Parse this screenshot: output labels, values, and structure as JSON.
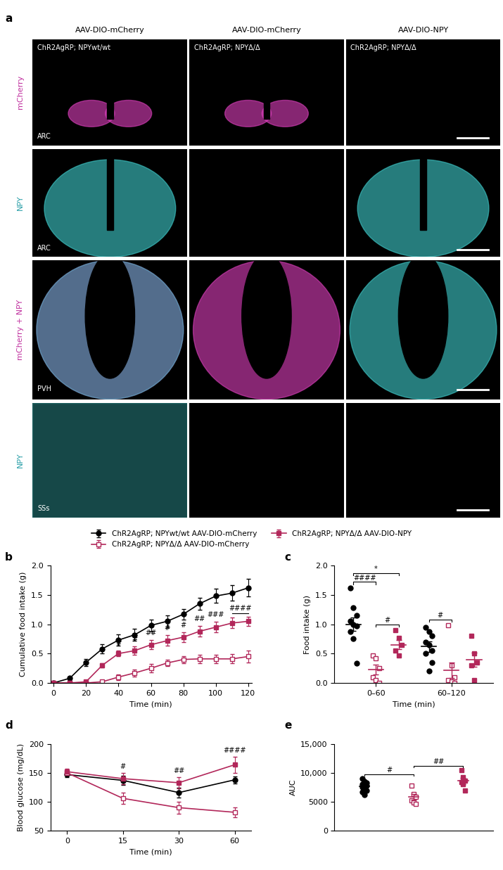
{
  "panel_a": {
    "letter": "a",
    "columns": [
      {
        "header": "AAV-DIO-mCherry",
        "genotype": "ChR2AgRP; NPYwt/wt"
      },
      {
        "header": "AAV-DIO-mCherry",
        "genotype": "ChR2AgRP; NPYΔ/Δ"
      },
      {
        "header": "AAV-DIO-NPY",
        "genotype": "ChR2AgRP; NPYΔ/Δ"
      }
    ],
    "rows": [
      {
        "label": "mCherry",
        "region": "ARC"
      },
      {
        "label": "NPY",
        "region": "ARC"
      },
      {
        "label": "mCherry + NPY",
        "region": "PVH"
      },
      {
        "label": "NPY",
        "region": "SSs"
      }
    ]
  },
  "chart_data": [
    {
      "panel": "b",
      "type": "line",
      "x": [
        0,
        10,
        20,
        30,
        40,
        50,
        60,
        70,
        80,
        90,
        100,
        110,
        120
      ],
      "xlim": [
        -2,
        122
      ],
      "xticks": [
        0,
        20,
        40,
        60,
        80,
        100,
        120
      ],
      "ylim": [
        0,
        2
      ],
      "yticks": [
        {
          "value": 0,
          "label": "0.0"
        },
        {
          "value": 0.5,
          "label": "0.5"
        },
        {
          "value": 1,
          "label": "1.0"
        },
        {
          "value": 1.5,
          "label": "1.5"
        },
        {
          "value": 2,
          "label": "2.0"
        }
      ],
      "x_label": "Time (min)",
      "y_label": "Cumulative food intake (g)",
      "legend": "upper center",
      "series": [
        {
          "name": "ChR2AgRP; NPYwt/wt AAV-DIO-mCherry",
          "color": "#000000",
          "marker": "circle",
          "values": [
            0,
            0.08,
            0.35,
            0.58,
            0.73,
            0.82,
            0.98,
            1.05,
            1.17,
            1.35,
            1.48,
            1.53,
            1.62
          ],
          "errors": [
            0.01,
            0.03,
            0.06,
            0.08,
            0.1,
            0.1,
            0.1,
            0.1,
            0.09,
            0.1,
            0.12,
            0.13,
            0.15
          ]
        },
        {
          "name": "ChR2AgRP; NPYΔ/Δ AAV-DIO-mCherry",
          "color": "#b2275a",
          "marker": "open_square",
          "values": [
            0,
            0,
            0,
            0.02,
            0.1,
            0.17,
            0.25,
            0.34,
            0.4,
            0.41,
            0.41,
            0.41,
            0.45
          ],
          "errors": [
            0,
            0,
            0.01,
            0.03,
            0.05,
            0.06,
            0.07,
            0.05,
            0.06,
            0.07,
            0.07,
            0.08,
            0.1
          ]
        },
        {
          "name": "ChR2AgRP; NPYΔ/Δ AAV-DIO-NPY",
          "color": "#b2275a",
          "marker": "square",
          "values": [
            0,
            0,
            0.02,
            0.3,
            0.5,
            0.55,
            0.65,
            0.72,
            0.78,
            0.88,
            0.95,
            1.02,
            1.05
          ],
          "errors": [
            0,
            0,
            0.02,
            0.04,
            0.05,
            0.07,
            0.08,
            0.09,
            0.08,
            0.09,
            0.09,
            0.09,
            0.08
          ]
        }
      ],
      "annotations": [
        {
          "text": "#",
          "x": 40,
          "between": [
            "ChR2AgRP; NPYΔ/Δ AAV-DIO-mCherry",
            "ChR2AgRP; NPYΔ/Δ AAV-DIO-NPY"
          ]
        },
        {
          "text": "#",
          "x": 50,
          "between": [
            "ChR2AgRP; NPYΔ/Δ AAV-DIO-mCherry",
            "ChR2AgRP; NPYΔ/Δ AAV-DIO-NPY"
          ]
        },
        {
          "text": "##",
          "x": 60,
          "between": [
            "ChR2AgRP; NPYΔ/Δ AAV-DIO-mCherry",
            "ChR2AgRP; NPYΔ/Δ AAV-DIO-NPY"
          ]
        },
        {
          "text": "#",
          "x": 70,
          "between": [
            "ChR2AgRP; NPYΔ/Δ AAV-DIO-mCherry",
            "ChR2AgRP; NPYΔ/Δ AAV-DIO-NPY"
          ]
        },
        {
          "text": "#",
          "x": 80,
          "between": [
            "ChR2AgRP; NPYΔ/Δ AAV-DIO-mCherry",
            "ChR2AgRP; NPYΔ/Δ AAV-DIO-NPY"
          ]
        },
        {
          "text": "##",
          "x": 90,
          "between": [
            "ChR2AgRP; NPYΔ/Δ AAV-DIO-mCherry",
            "ChR2AgRP; NPYΔ/Δ AAV-DIO-NPY"
          ]
        },
        {
          "text": "###",
          "x": 100,
          "between": [
            "ChR2AgRP; NPYΔ/Δ AAV-DIO-mCherry",
            "ChR2AgRP; NPYΔ/Δ AAV-DIO-NPY"
          ]
        },
        {
          "text": "####",
          "x": [
            110,
            120
          ],
          "between": [
            "ChR2AgRP; NPYΔ/Δ AAV-DIO-mCherry",
            "ChR2AgRP; NPYΔ/Δ AAV-DIO-NPY"
          ]
        }
      ]
    },
    {
      "panel": "c",
      "type": "scatter",
      "categories": [
        "0–60",
        "60–120"
      ],
      "ylim": [
        0,
        2
      ],
      "yticks": [
        {
          "value": 0,
          "label": "0.0"
        },
        {
          "value": 0.5,
          "label": "0.5"
        },
        {
          "value": 1,
          "label": "1.0"
        },
        {
          "value": 1.5,
          "label": "1.5"
        },
        {
          "value": 2,
          "label": "2.0"
        }
      ],
      "x_label": "Time (min)",
      "y_label": "Food intake (g)",
      "series": [
        {
          "name": "ChR2AgRP; NPYwt/wt AAV-DIO-mCherry",
          "color": "#000000",
          "marker": "circle",
          "values": [
            [
              1.62,
              1.28,
              1.15,
              1.05,
              1.0,
              0.97,
              0.88,
              0.75,
              0.33
            ],
            [
              0.95,
              0.88,
              0.8,
              0.7,
              0.65,
              0.55,
              0.5,
              0.2,
              0.35
            ]
          ],
          "mean": [
            1.0,
            0.62
          ],
          "error": [
            0.11,
            0.09
          ]
        },
        {
          "name": "ChR2AgRP; NPYΔ/Δ AAV-DIO-mCherry",
          "color": "#b2275a",
          "marker": "open_square",
          "values": [
            [
              0.47,
              0.42,
              0.25,
              0.1,
              0.05,
              0.0
            ],
            [
              0.98,
              0.3,
              0.1,
              0.05,
              0.02,
              0.0
            ]
          ],
          "mean": [
            0.23,
            0.22
          ],
          "error": [
            0.08,
            0.13
          ]
        },
        {
          "name": "ChR2AgRP; NPYΔ/Δ AAV-DIO-NPY",
          "color": "#b2275a",
          "marker": "square",
          "values": [
            [
              0.9,
              0.77,
              0.65,
              0.55,
              0.47
            ],
            [
              0.8,
              0.5,
              0.35,
              0.3,
              0.05
            ]
          ],
          "mean": [
            0.65,
            0.4
          ],
          "error": [
            0.08,
            0.12
          ]
        }
      ],
      "comparisons": [
        {
          "category": "0–60",
          "between": [
            "ChR2AgRP; NPYwt/wt AAV-DIO-mCherry",
            "ChR2AgRP; NPYΔ/Δ AAV-DIO-mCherry"
          ],
          "text": "####"
        },
        {
          "category": "0–60",
          "between": [
            "ChR2AgRP; NPYΔ/Δ AAV-DIO-mCherry",
            "ChR2AgRP; NPYΔ/Δ AAV-DIO-NPY"
          ],
          "text": "#"
        },
        {
          "category": "0–60",
          "between": [
            "ChR2AgRP; NPYwt/wt AAV-DIO-mCherry",
            "ChR2AgRP; NPYΔ/Δ AAV-DIO-NPY"
          ],
          "text": "*"
        },
        {
          "category": "60–120",
          "between": [
            "ChR2AgRP; NPYwt/wt AAV-DIO-mCherry",
            "ChR2AgRP; NPYΔ/Δ AAV-DIO-mCherry"
          ],
          "text": "#"
        }
      ]
    },
    {
      "panel": "d",
      "type": "line",
      "categories": [
        "0",
        "15",
        "30",
        "60"
      ],
      "ylim": [
        50,
        200
      ],
      "yticks": [
        50,
        100,
        150,
        200
      ],
      "x_label": "Time (min)",
      "y_label": "Blood glucose (mg/dL)",
      "series": [
        {
          "name": "ChR2AgRP; NPYwt/wt AAV-DIO-mCherry",
          "color": "#000000",
          "marker": "circle",
          "values": [
            147,
            137,
            116,
            138
          ],
          "errors": [
            5,
            8,
            8,
            6
          ]
        },
        {
          "name": "ChR2AgRP; NPYΔ/Δ AAV-DIO-mCherry",
          "color": "#b2275a",
          "marker": "open_square",
          "values": [
            150,
            106,
            90,
            82
          ],
          "errors": [
            5,
            10,
            10,
            8
          ]
        },
        {
          "name": "ChR2AgRP; NPYΔ/Δ AAV-DIO-NPY",
          "color": "#b2275a",
          "marker": "square",
          "values": [
            152,
            140,
            133,
            164
          ],
          "errors": [
            5,
            10,
            10,
            14
          ]
        }
      ],
      "annotations": [
        {
          "text": "#",
          "x": "15",
          "between": [
            "ChR2AgRP; NPYΔ/Δ AAV-DIO-mCherry",
            "ChR2AgRP; NPYΔ/Δ AAV-DIO-NPY"
          ]
        },
        {
          "text": "##",
          "x": "30",
          "between": [
            "ChR2AgRP; NPYΔ/Δ AAV-DIO-mCherry",
            "ChR2AgRP; NPYΔ/Δ AAV-DIO-NPY"
          ]
        },
        {
          "text": "####",
          "x": "60",
          "between": [
            "ChR2AgRP; NPYΔ/Δ AAV-DIO-mCherry",
            "ChR2AgRP; NPYΔ/Δ AAV-DIO-NPY"
          ]
        }
      ]
    },
    {
      "panel": "e",
      "type": "scatter",
      "tick_labels": "y",
      "ylim": [
        0,
        15000
      ],
      "yticks": [
        0,
        5000,
        {
          "value": 10000,
          "label": "10,000"
        },
        {
          "value": 15000,
          "label": "15,000"
        }
      ],
      "y_label": "AUC",
      "series": [
        {
          "name": "ChR2AgRP; NPYwt/wt AAV-DIO-mCherry",
          "color": "#000000",
          "marker": "circle",
          "values": [
            9000,
            8500,
            8300,
            8100,
            7900,
            7800,
            7600,
            7300,
            7000,
            6700,
            6200
          ],
          "mean": 7700,
          "error": 250
        },
        {
          "name": "ChR2AgRP; NPYΔ/Δ AAV-DIO-mCherry",
          "color": "#b2275a",
          "marker": "open_square",
          "values": [
            7800,
            6400,
            5900,
            5300,
            4900,
            4700
          ],
          "mean": 5900,
          "error": 480
        },
        {
          "name": "ChR2AgRP; NPYΔ/Δ AAV-DIO-NPY",
          "color": "#b2275a",
          "marker": "square",
          "values": [
            10500,
            9200,
            8700,
            8400,
            8000,
            6900
          ],
          "mean": 8600,
          "error": 500
        }
      ],
      "comparisons": [
        {
          "between": [
            "ChR2AgRP; NPYwt/wt AAV-DIO-mCherry",
            "ChR2AgRP; NPYΔ/Δ AAV-DIO-mCherry"
          ],
          "text": "#"
        },
        {
          "between": [
            "ChR2AgRP; NPYΔ/Δ AAV-DIO-mCherry",
            "ChR2AgRP; NPYΔ/Δ AAV-DIO-NPY"
          ],
          "text": "##"
        }
      ]
    }
  ]
}
